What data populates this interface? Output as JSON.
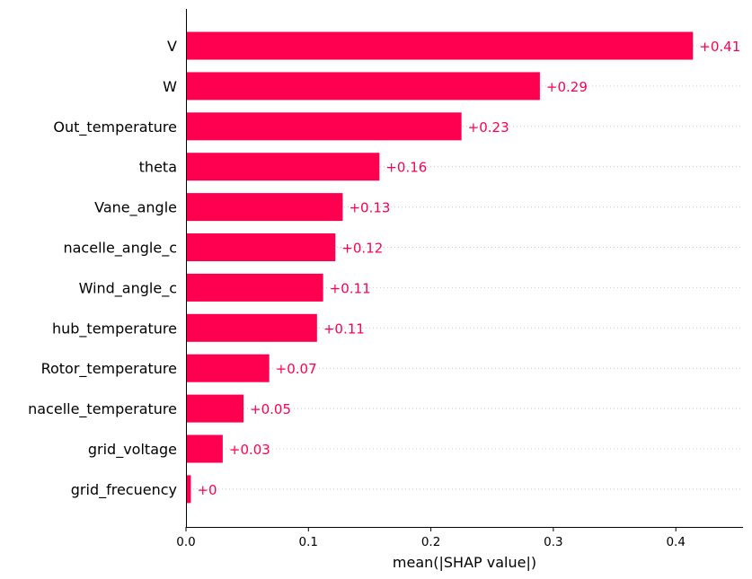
{
  "chart_data": {
    "type": "bar",
    "orientation": "horizontal",
    "categories": [
      "V",
      "W",
      "Out_temperature",
      "theta",
      "Vane_angle",
      "nacelle_angle_c",
      "Wind_angle_c",
      "hub_temperature",
      "Rotor_temperature",
      "nacelle_temperature",
      "grid_voltage",
      "grid_frecuency"
    ],
    "values": [
      0.414,
      0.289,
      0.225,
      0.158,
      0.128,
      0.122,
      0.112,
      0.107,
      0.068,
      0.047,
      0.03,
      0.004
    ],
    "value_labels": [
      "+0.41",
      "+0.29",
      "+0.23",
      "+0.16",
      "+0.13",
      "+0.12",
      "+0.11",
      "+0.11",
      "+0.07",
      "+0.05",
      "+0.03",
      "+0"
    ],
    "x_ticks": [
      0.0,
      0.1,
      0.2,
      0.3,
      0.4
    ],
    "x_tick_labels": [
      "0.0",
      "0.1",
      "0.2",
      "0.3",
      "0.4"
    ],
    "xlim": [
      0,
      0.455
    ],
    "xlabel": "mean(|SHAP value|)",
    "ylabel": "",
    "title": "",
    "grid": "dotted horizontal guide lines",
    "colors": {
      "bar": "#ff0051",
      "label": "#ff0051",
      "guide": "#cccccc",
      "axis": "#000000"
    }
  }
}
